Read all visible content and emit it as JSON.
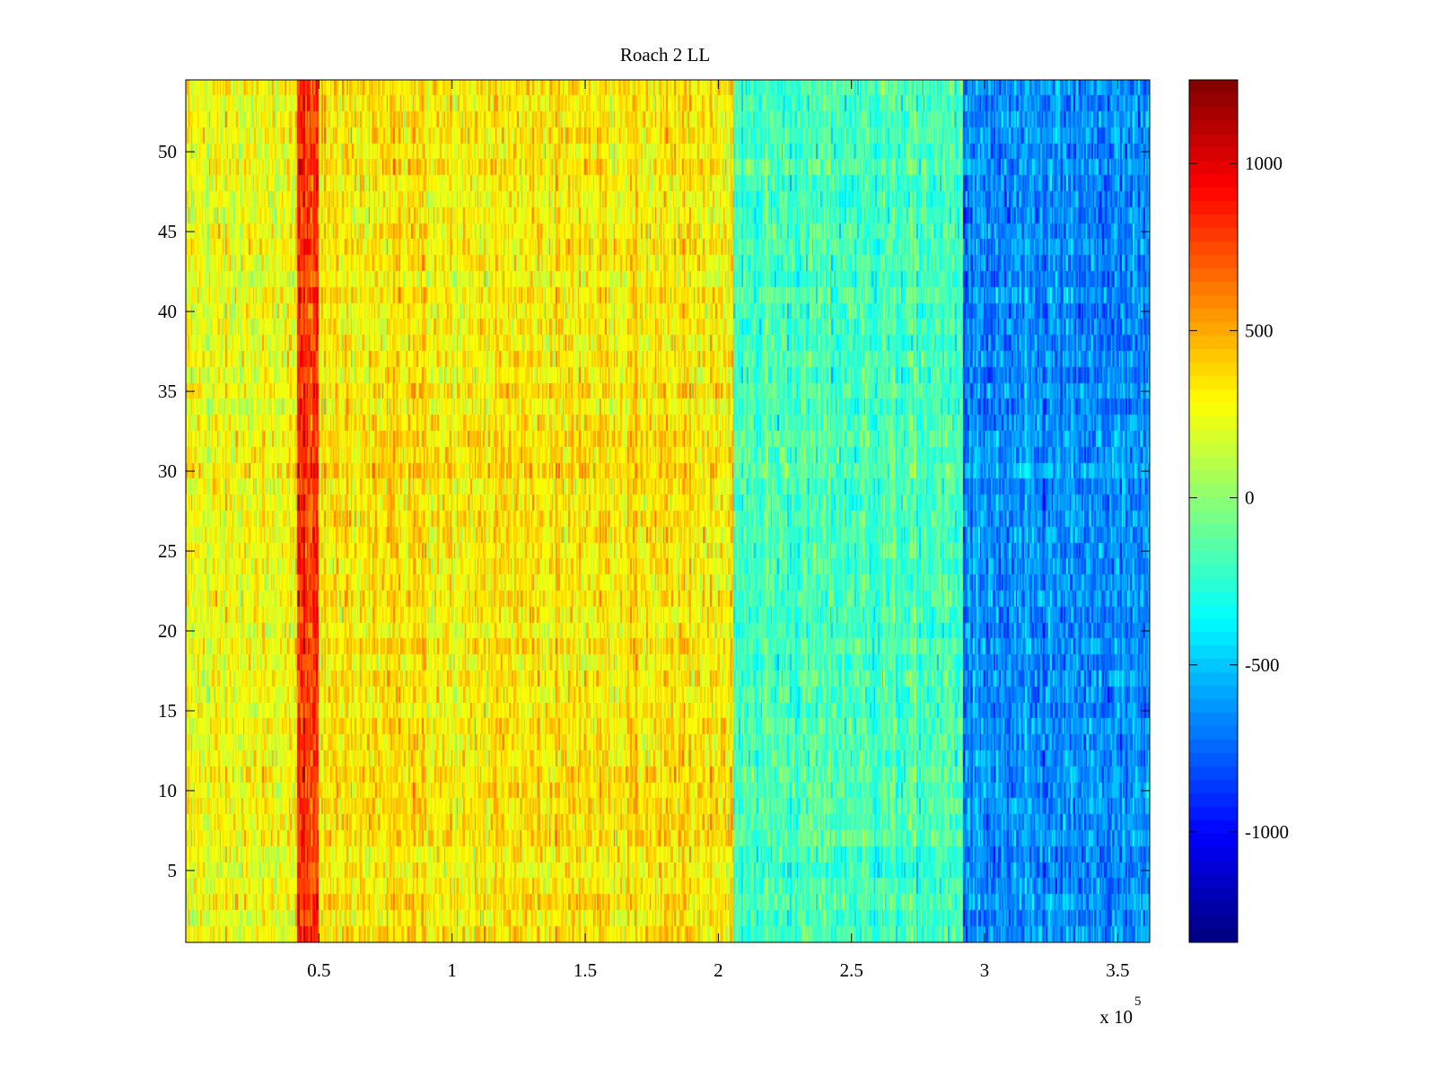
{
  "chart_data": {
    "type": "heatmap",
    "title": "Roach 2 LL",
    "xlabel": "",
    "ylabel": "",
    "x_multiplier_label": {
      "base": "x 10",
      "exponent": "5"
    },
    "xlim": [
      0,
      3.62
    ],
    "ylim": [
      0.5,
      54.5
    ],
    "x_ticks": [
      {
        "value": 0.5,
        "label": "0.5"
      },
      {
        "value": 1,
        "label": "1"
      },
      {
        "value": 1.5,
        "label": "1.5"
      },
      {
        "value": 2,
        "label": "2"
      },
      {
        "value": 2.5,
        "label": "2.5"
      },
      {
        "value": 3,
        "label": "3"
      },
      {
        "value": 3.5,
        "label": "3.5"
      }
    ],
    "y_ticks": [
      {
        "value": 5,
        "label": "5"
      },
      {
        "value": 10,
        "label": "10"
      },
      {
        "value": 15,
        "label": "15"
      },
      {
        "value": 20,
        "label": "20"
      },
      {
        "value": 25,
        "label": "25"
      },
      {
        "value": 30,
        "label": "30"
      },
      {
        "value": 35,
        "label": "35"
      },
      {
        "value": 40,
        "label": "40"
      },
      {
        "value": 45,
        "label": "45"
      },
      {
        "value": 50,
        "label": "50"
      }
    ],
    "rows": 54,
    "colormap": "jet",
    "clim": [
      -1330,
      1250
    ],
    "colorbar_ticks": [
      {
        "value": 1000,
        "label": "1000"
      },
      {
        "value": 500,
        "label": "500"
      },
      {
        "value": 0,
        "label": "0"
      },
      {
        "value": -500,
        "label": "-500"
      },
      {
        "value": -1000,
        "label": "-1000"
      }
    ],
    "column_bands": [
      {
        "x_start": 0.0,
        "x_end": 0.42,
        "mean": 250,
        "noise": 200
      },
      {
        "x_start": 0.42,
        "x_end": 0.5,
        "mean": 820,
        "noise": 220
      },
      {
        "x_start": 0.5,
        "x_end": 2.06,
        "mean": 330,
        "noise": 200
      },
      {
        "x_start": 2.06,
        "x_end": 2.92,
        "mean": -180,
        "noise": 200
      },
      {
        "x_start": 2.92,
        "x_end": 3.62,
        "mean": -660,
        "noise": 220
      }
    ],
    "grid": false,
    "legend": "colorbar-right"
  }
}
